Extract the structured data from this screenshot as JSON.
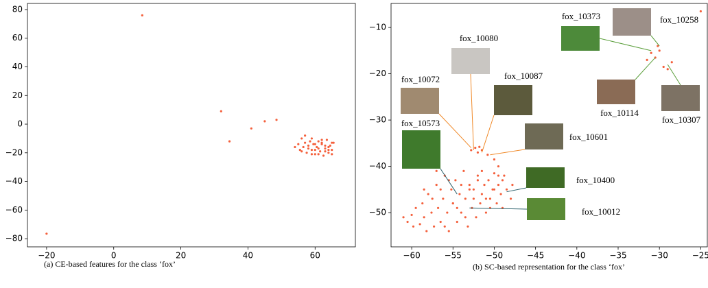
{
  "chart_data": [
    {
      "type": "scatter",
      "caption": "(a) CE-based features for the class ‘fox’",
      "color": "#f4603c",
      "x": [
        -20,
        8.5,
        32,
        34.5,
        41,
        45,
        48.5,
        54,
        55,
        55.5,
        56,
        56.5,
        57,
        57.5,
        58,
        58.5,
        59,
        59.5,
        60,
        60.5,
        61,
        61.5,
        62,
        62.5,
        63,
        63.5,
        64,
        64.5,
        65,
        65.5,
        56,
        57,
        58,
        59,
        60,
        61,
        62,
        63,
        64,
        65,
        59,
        61,
        63,
        65,
        60,
        62,
        64
      ],
      "y": [
        -76.5,
        76,
        9,
        -12,
        -3,
        2,
        3,
        -16,
        -14,
        -18,
        -10,
        -16,
        -8,
        -20,
        -15,
        -12,
        -18,
        -14,
        -21,
        -16,
        -12,
        -19,
        -14,
        -22,
        -17,
        -11,
        -20,
        -15,
        -18,
        -13,
        -19,
        -13,
        -17,
        -21,
        -14,
        -17,
        -11,
        -19,
        -16,
        -21,
        -10,
        -21,
        -15,
        -13,
        -18,
        -13,
        -18
      ],
      "xlim": [
        -25.7,
        72
      ],
      "ylim": [
        -85.7,
        84.3
      ],
      "xticks": [
        {
          "value": -20,
          "label": "−20"
        },
        0,
        20,
        40,
        60
      ],
      "yticks": [
        {
          "value": -80,
          "label": "−80"
        },
        {
          "value": -60,
          "label": "−60"
        },
        {
          "value": -40,
          "label": "−40"
        },
        {
          "value": -20,
          "label": "−20"
        },
        0,
        20,
        40,
        60,
        80
      ]
    },
    {
      "type": "scatter",
      "caption": "(b) SC-based representation for the class ‘fox’",
      "color": "#f4603c",
      "x": [
        -61,
        -60.5,
        -60,
        -59.8,
        -59.5,
        -59,
        -58.7,
        -58.5,
        -58.2,
        -58,
        -57.6,
        -57.3,
        -57,
        -56.8,
        -56.5,
        -56.2,
        -56,
        -55.7,
        -55.5,
        -55.2,
        -55,
        -54.7,
        -54.5,
        -54.2,
        -54,
        -53.7,
        -53.5,
        -53.2,
        -53,
        -52.7,
        -52.5,
        -52.2,
        -52,
        -51.7,
        -51.5,
        -51.2,
        -51,
        -50.7,
        -50.5,
        -50.2,
        -50,
        -49.7,
        -49.5,
        -49.2,
        -49,
        -48.5,
        -48,
        -47.8,
        -57.5,
        -56.5,
        -55.5,
        -54.5,
        -53.5,
        -52.5,
        -51.5,
        -50.5,
        -49.5,
        -58.5,
        -57,
        -55,
        -53,
        -51,
        -49,
        -56,
        -54,
        -52,
        -50,
        -48.8,
        -52.8,
        -52.3,
        -51.8,
        -51.5,
        -52,
        -50.8,
        -50,
        -49.5,
        -31.5,
        -31,
        -30.5,
        -30.2,
        -30,
        -29.5,
        -29,
        -28.5,
        -25
      ],
      "y": [
        -51,
        -52,
        -50.5,
        -53,
        -49,
        -52.5,
        -48,
        -51,
        -54,
        -46,
        -50,
        -53,
        -44,
        -49,
        -52,
        -47,
        -42,
        -50,
        -54,
        -45,
        -48,
        -43,
        -52,
        -46,
        -50,
        -41,
        -47,
        -53,
        -44,
        -49,
        -45,
        -51,
        -42,
        -48,
        -46,
        -44,
        -50,
        -43,
        -47,
        -45,
        -41.5,
        -48,
        -44,
        -46,
        -43,
        -45,
        -47,
        -44,
        -47,
        -45,
        -43,
        -49,
        -51,
        -47,
        -41,
        -49,
        -42,
        -45,
        -41,
        -48,
        -45,
        -47,
        -49,
        -53,
        -44,
        -43,
        -45,
        -42,
        -36.5,
        -36,
        -35.8,
        -36.5,
        -37,
        -37.5,
        -38.5,
        -40,
        -17,
        -15.5,
        -16.5,
        -14,
        -15,
        -18.5,
        -19,
        -17.5,
        -6.5
      ],
      "xlim": [
        -62.5,
        -24.2
      ],
      "ylim": [
        -57.4,
        -4.8
      ],
      "xticks": [
        {
          "value": -60,
          "label": "−60"
        },
        {
          "value": -55,
          "label": "−55"
        },
        {
          "value": -50,
          "label": "−50"
        },
        {
          "value": -45,
          "label": "−45"
        },
        {
          "value": -40,
          "label": "−40"
        },
        {
          "value": -35,
          "label": "−35"
        },
        {
          "value": -30,
          "label": "−30"
        },
        {
          "value": -25,
          "label": "−25"
        }
      ],
      "yticks": [
        {
          "value": -10,
          "label": "−10"
        },
        {
          "value": -20,
          "label": "−20"
        },
        {
          "value": -30,
          "label": "−30"
        },
        {
          "value": -40,
          "label": "−40"
        },
        {
          "value": -50,
          "label": "−50"
        }
      ],
      "annotations": [
        {
          "text": "fox_10080",
          "xy": [
            -52.5,
            -36.5
          ],
          "color": "#f08a2a"
        },
        {
          "text": "fox_10072",
          "xy": [
            -52.8,
            -36
          ],
          "color": "#f08a2a"
        },
        {
          "text": "fox_10087",
          "xy": [
            -51.5,
            -37
          ],
          "color": "#f08a2a"
        },
        {
          "text": "fox_10601",
          "xy": [
            -50.5,
            -37.5
          ],
          "color": "#f08a2a"
        },
        {
          "text": "fox_10573",
          "xy": [
            -54.5,
            -46
          ],
          "color": "#2a5f6a"
        },
        {
          "text": "fox_10400",
          "xy": [
            -48.5,
            -45.5
          ],
          "color": "#2a5f6a"
        },
        {
          "text": "fox_10012",
          "xy": [
            -53,
            -49
          ],
          "color": "#2a5f6a"
        },
        {
          "text": "fox_10373",
          "xy": [
            -31,
            -15
          ],
          "color": "#5a9e3a"
        },
        {
          "text": "fox_10258",
          "xy": [
            -30,
            -14
          ],
          "color": "#5a9e3a"
        },
        {
          "text": "fox_10114",
          "xy": [
            -30.5,
            -16.5
          ],
          "color": "#5a9e3a"
        },
        {
          "text": "fox_10307",
          "xy": [
            -29,
            -18
          ],
          "color": "#5a9e3a"
        }
      ]
    }
  ]
}
